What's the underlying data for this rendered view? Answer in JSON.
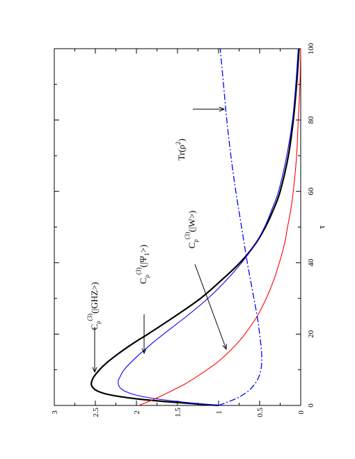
{
  "chart_data": {
    "type": "line",
    "orientation": "rotated-90-ccw",
    "xlabel": "τ",
    "ylabel": "",
    "xlim": [
      0,
      100
    ],
    "ylim": [
      0,
      3
    ],
    "x_ticks": [
      "0",
      "20",
      "40",
      "60",
      "80",
      "100"
    ],
    "y_ticks": [
      "0",
      "0.5",
      "1",
      "1.5",
      "2",
      "2.5",
      "3"
    ],
    "grid": false,
    "legend": "none",
    "series": [
      {
        "key": "ghz",
        "color": "#000000",
        "dash": "solid",
        "width": 2.2,
        "x": [
          0,
          1,
          2,
          3,
          4,
          5,
          6,
          7,
          8,
          10,
          12,
          14,
          16,
          18,
          20,
          25,
          30,
          35,
          40,
          45,
          50,
          55,
          60,
          70,
          80,
          90,
          100
        ],
        "y": [
          1.0,
          1.6,
          2.05,
          2.33,
          2.47,
          2.53,
          2.55,
          2.54,
          2.52,
          2.45,
          2.36,
          2.25,
          2.13,
          2.0,
          1.86,
          1.53,
          1.22,
          0.97,
          0.74,
          0.56,
          0.43,
          0.33,
          0.25,
          0.15,
          0.09,
          0.05,
          0.02
        ]
      },
      {
        "key": "psi1",
        "color": "#0000ff",
        "dash": "solid",
        "width": 1.1,
        "x": [
          0,
          1,
          2,
          3,
          4,
          5,
          6,
          7,
          8,
          10,
          12,
          14,
          16,
          18,
          20,
          25,
          30,
          35,
          40,
          45,
          50,
          55,
          60,
          70,
          80,
          90,
          100
        ],
        "y": [
          1.0,
          1.45,
          1.8,
          2.02,
          2.14,
          2.2,
          2.22,
          2.22,
          2.2,
          2.15,
          2.07,
          1.98,
          1.88,
          1.78,
          1.67,
          1.39,
          1.13,
          0.91,
          0.72,
          0.56,
          0.44,
          0.35,
          0.27,
          0.17,
          0.1,
          0.06,
          0.03
        ]
      },
      {
        "key": "w",
        "color": "#ff0000",
        "dash": "solid",
        "width": 1.1,
        "x": [
          0,
          2,
          4,
          6,
          8,
          10,
          12,
          14,
          16,
          18,
          20,
          25,
          30,
          35,
          40,
          45,
          50,
          55,
          60,
          70,
          80,
          90,
          100
        ],
        "y": [
          1.97,
          1.76,
          1.58,
          1.41,
          1.27,
          1.14,
          1.02,
          0.92,
          0.83,
          0.75,
          0.68,
          0.53,
          0.42,
          0.33,
          0.26,
          0.2,
          0.16,
          0.12,
          0.09,
          0.05,
          0.03,
          0.01,
          0.0
        ]
      },
      {
        "key": "tr",
        "color": "#0000ff",
        "dash": "dashdot",
        "width": 1.3,
        "x": [
          0,
          2,
          4,
          6,
          8,
          10,
          12,
          14,
          16,
          20,
          25,
          30,
          35,
          40,
          50,
          60,
          70,
          80,
          90,
          100
        ],
        "y": [
          1.0,
          0.78,
          0.64,
          0.56,
          0.51,
          0.485,
          0.475,
          0.475,
          0.48,
          0.5,
          0.53,
          0.57,
          0.61,
          0.65,
          0.72,
          0.79,
          0.85,
          0.9,
          0.94,
          0.98
        ]
      }
    ],
    "annotations": [
      {
        "key": "ghz",
        "main": "C",
        "sub": "ρ",
        "sup": "(3)",
        "tail": "(|GHZ>)",
        "x": 8,
        "y": 2.53
      },
      {
        "key": "psi1",
        "main": "C",
        "sub": "ρ",
        "sup": "(3)",
        "tail": "(|Ψ",
        "tail_sub": "1",
        "tail_end": ">)",
        "x": 19,
        "y": 1.9
      },
      {
        "key": "w",
        "main": "C",
        "sub": "ρ",
        "sup": "(3)",
        "tail": "(|W>)",
        "x": 16,
        "y": 0.8
      },
      {
        "key": "tr",
        "main": "Tr(ρ",
        "sup": "2",
        "tail": ")",
        "x": 84,
        "y": 0.92
      }
    ]
  }
}
